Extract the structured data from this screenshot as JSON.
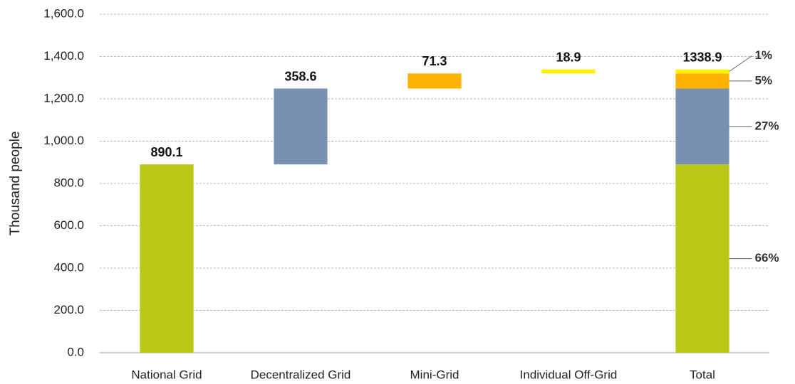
{
  "chart_data": {
    "type": "waterfall",
    "y_label": "Thousand people",
    "categories": [
      "National Grid",
      "Decentralized Grid",
      "Mini-Grid",
      "Individual Off-Grid",
      "Total"
    ],
    "values": [
      890.1,
      358.6,
      71.3,
      18.9,
      1338.9
    ],
    "colors": [
      "#b8c814",
      "#7991b0",
      "#ffb300",
      "#fff000"
    ],
    "total_annotations": [
      "66%",
      "27%",
      "5%",
      "1%"
    ],
    "ylim": [
      0,
      1600
    ],
    "yticks": [
      {
        "value": 0,
        "label": "0.0"
      },
      {
        "value": 200,
        "label": "200.0"
      },
      {
        "value": 400,
        "label": "400.0"
      },
      {
        "value": 600,
        "label": "600.0"
      },
      {
        "value": 800,
        "label": "800.0"
      },
      {
        "value": 1000,
        "label": "1,000.0"
      },
      {
        "value": 1200,
        "label": "1,200.0"
      },
      {
        "value": 1400,
        "label": "1,400.0"
      },
      {
        "value": 1600,
        "label": "1,600.0"
      }
    ],
    "grid": true
  }
}
